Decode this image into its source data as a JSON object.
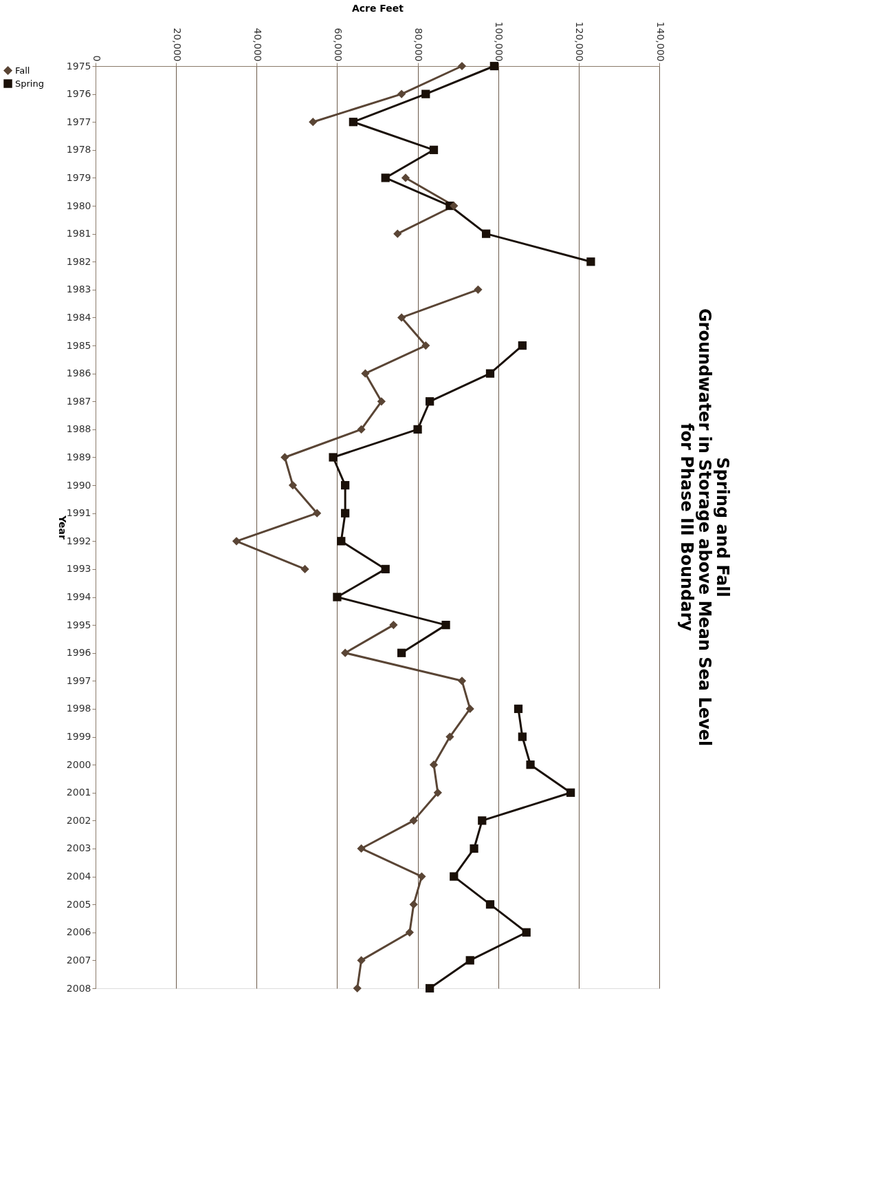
{
  "chart_data": {
    "type": "line",
    "title": "Spring and Fall\nGroundwater in Storage above Mean Sea Level\nfor Phase III Boundary",
    "xlabel": "Acre Feet",
    "ylabel": "Year",
    "orientation": "horizontal",
    "categories": [
      "1975",
      "1976",
      "1977",
      "1978",
      "1979",
      "1980",
      "1981",
      "1982",
      "1983",
      "1984",
      "1985",
      "1986",
      "1987",
      "1988",
      "1989",
      "1990",
      "1991",
      "1992",
      "1993",
      "1994",
      "1995",
      "1996",
      "1997",
      "1998",
      "1999",
      "2000",
      "2001",
      "2002",
      "2003",
      "2004",
      "2005",
      "2006",
      "2007",
      "2008"
    ],
    "series": [
      {
        "name": "Fall",
        "color": "#5a4535",
        "marker": "diamond",
        "values": [
          91000,
          76000,
          54000,
          null,
          77000,
          89000,
          75000,
          null,
          95000,
          76000,
          82000,
          67000,
          71000,
          66000,
          47000,
          49000,
          55000,
          35000,
          52000,
          null,
          74000,
          62000,
          91000,
          93000,
          88000,
          84000,
          85000,
          79000,
          66000,
          81000,
          79000,
          78000,
          66000,
          65000
        ]
      },
      {
        "name": "Spring",
        "color": "#1a1008",
        "marker": "square",
        "values": [
          99000,
          82000,
          64000,
          84000,
          72000,
          88000,
          97000,
          123000,
          null,
          null,
          106000,
          98000,
          83000,
          80000,
          59000,
          62000,
          62000,
          61000,
          72000,
          60000,
          87000,
          76000,
          null,
          105000,
          106000,
          108000,
          118000,
          96000,
          94000,
          89000,
          98000,
          107000,
          93000,
          83000
        ]
      }
    ],
    "xlim": [
      0,
      140000
    ],
    "xticks": [
      0,
      {
        "value": 20000,
        "label": "20,000"
      },
      {
        "value": 40000,
        "label": "40,000"
      },
      {
        "value": 60000,
        "label": "60,000"
      },
      {
        "value": 80000,
        "label": "80,000"
      },
      {
        "value": 100000,
        "label": "100,000"
      },
      {
        "value": 120000,
        "label": "120,000"
      },
      {
        "value": 140000,
        "label": "140,000"
      }
    ],
    "grid": "x",
    "legend": "left",
    "line_style": "solid"
  }
}
